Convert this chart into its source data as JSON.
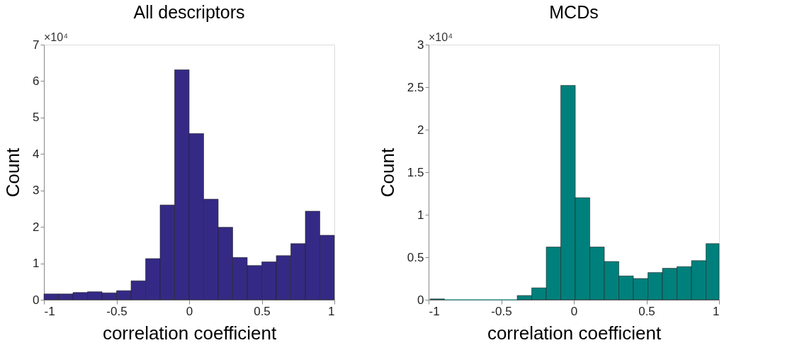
{
  "chart_data": [
    {
      "type": "histogram",
      "title": "All descriptors",
      "xlabel": "correlation coefficient",
      "ylabel": "Count",
      "color": "#342a85",
      "bins": [
        -1,
        -0.9,
        -0.8,
        -0.7,
        -0.6,
        -0.5,
        -0.4,
        -0.3,
        -0.2,
        -0.1,
        0,
        0.1,
        0.2,
        0.3,
        0.4,
        0.5,
        0.6,
        0.7,
        0.8,
        0.9,
        1
      ],
      "values": [
        0.16,
        0.16,
        0.2,
        0.22,
        0.19,
        0.25,
        0.52,
        1.13,
        2.6,
        6.31,
        4.56,
        2.76,
        1.99,
        1.16,
        0.94,
        1.04,
        1.21,
        1.54,
        2.43,
        1.77
      ],
      "xlim": [
        -1,
        1
      ],
      "xticks": [
        -1,
        -0.5,
        0,
        0.5,
        1
      ],
      "ylim": [
        0,
        7
      ],
      "yticks": [
        0,
        1,
        2,
        3,
        4,
        5,
        6,
        7
      ],
      "annotations": [
        "×10⁴"
      ],
      "grid": false
    },
    {
      "type": "histogram",
      "title": "MCDs",
      "xlabel": "correlation coefficient",
      "ylabel": "Count",
      "color": "#00807c",
      "bins": [
        -0.99,
        -0.89,
        -0.79,
        -0.69,
        -0.59,
        -0.49,
        -0.39,
        -0.29,
        -0.19,
        -0.09,
        0.01,
        0.11,
        0.21,
        0.31,
        0.41,
        0.51,
        0.61,
        0.71,
        0.81,
        0.91,
        1
      ],
      "values": [
        0.01,
        0,
        0,
        0,
        0,
        0,
        0.05,
        0.14,
        0.62,
        2.52,
        1.2,
        0.62,
        0.45,
        0.28,
        0.25,
        0.32,
        0.37,
        0.39,
        0.46,
        0.66
      ],
      "xlim": [
        -1,
        1
      ],
      "xticks": [
        -1,
        -0.5,
        0,
        0.5,
        1
      ],
      "ylim": [
        0,
        3
      ],
      "yticks": [
        0,
        0.5,
        1,
        1.5,
        2,
        2.5,
        3
      ],
      "annotations": [
        "×10⁴"
      ],
      "grid": false
    }
  ]
}
